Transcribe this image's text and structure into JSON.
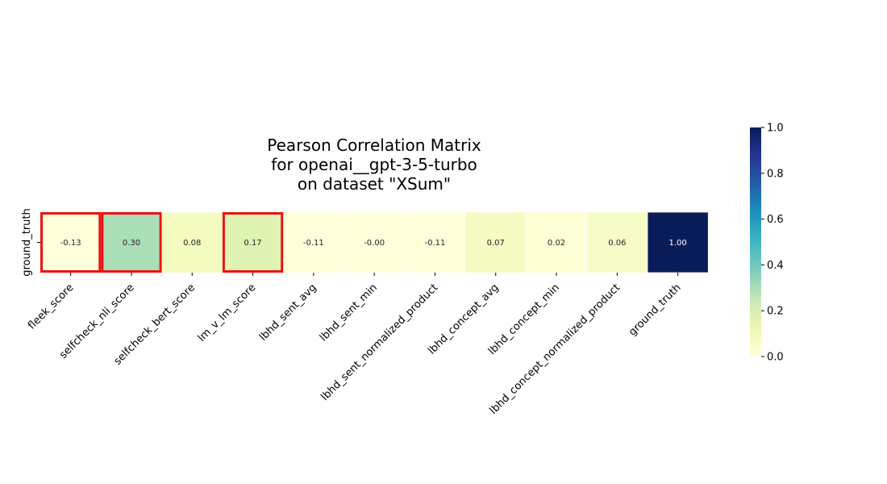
{
  "chart_data": {
    "type": "heatmap",
    "title_lines": [
      "Pearson Correlation Matrix",
      "for openai__gpt-3-5-turbo",
      "on dataset \"XSum\""
    ],
    "row_labels": [
      "ground_truth"
    ],
    "column_labels": [
      "fleek_score",
      "selfcheck_nli_score",
      "selfcheck_bert_score",
      "lm_v_lm_score",
      "lbhd_sent_avg",
      "lbhd_sent_min",
      "lbhd_sent_normalized_product",
      "lbhd_concept_avg",
      "lbhd_concept_min",
      "lbhd_concept_normalized_product",
      "ground_truth"
    ],
    "values": [
      [
        -0.13,
        0.3,
        0.08,
        0.17,
        -0.11,
        -0.0,
        -0.11,
        0.07,
        0.02,
        0.06,
        1.0
      ]
    ],
    "value_labels": [
      [
        "-0.13",
        "0.30",
        "0.08",
        "0.17",
        "-0.11",
        "-0.00",
        "-0.11",
        "0.07",
        "0.02",
        "0.06",
        "1.00"
      ]
    ],
    "highlighted_columns": [
      "fleek_score",
      "selfcheck_nli_score",
      "lm_v_lm_score"
    ],
    "highlight_color": "#ee1111",
    "colormap": "YlGnBu",
    "vmin": 0.0,
    "vmax": 1.0,
    "colorbar_ticks": [
      {
        "value": 0.0,
        "label": "0.0"
      },
      {
        "value": 0.2,
        "label": "0.2"
      },
      {
        "value": 0.4,
        "label": "0.4"
      },
      {
        "value": 0.6,
        "label": "0.6"
      },
      {
        "value": 0.8,
        "label": "0.8"
      },
      {
        "value": 1.0,
        "label": "1.0"
      }
    ]
  }
}
